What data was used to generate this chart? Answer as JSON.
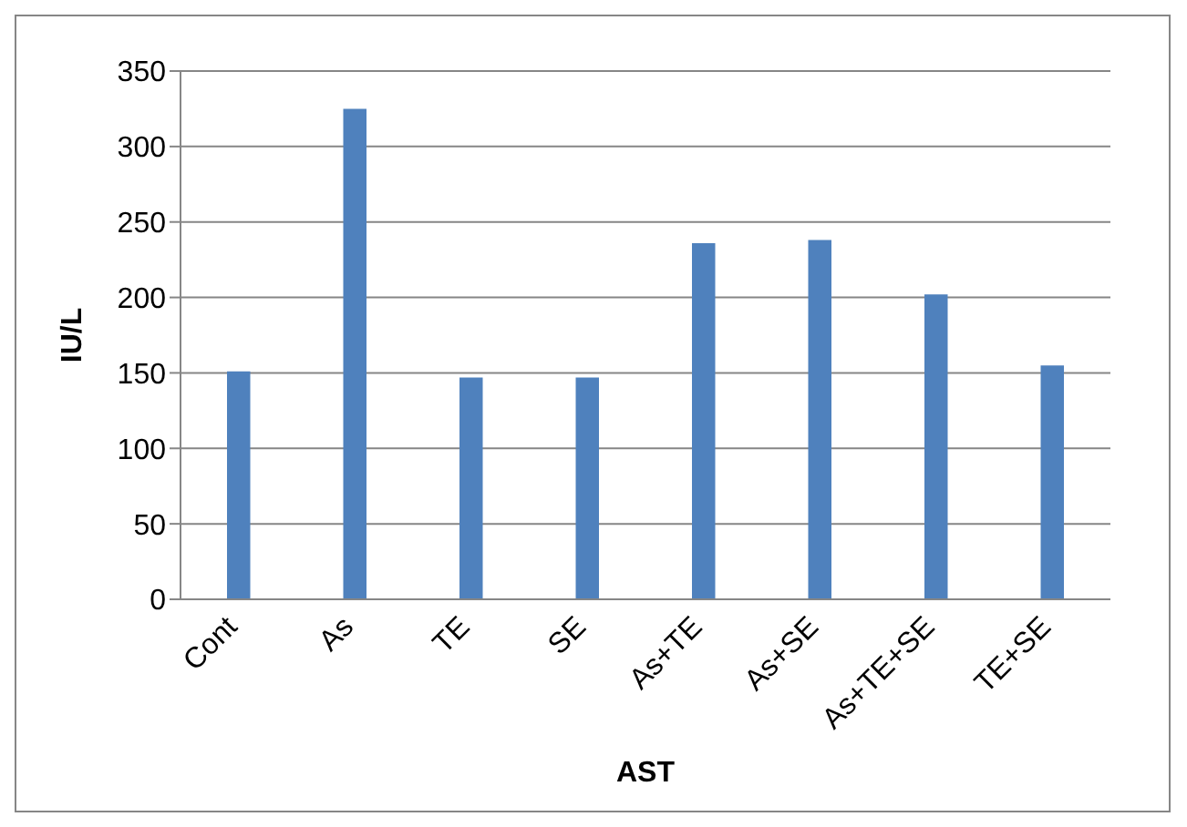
{
  "chart_data": {
    "type": "bar",
    "xlabel": "AST",
    "ylabel": "IU/L",
    "categories": [
      "Cont",
      "As",
      "TE",
      "SE",
      "As+TE",
      "As+SE",
      "As+TE+SE",
      "TE+SE"
    ],
    "values": [
      151,
      325,
      147,
      147,
      236,
      238,
      202,
      155
    ],
    "color": "#4f81bd",
    "ylim": [
      0,
      350
    ],
    "yticks": [
      0,
      50,
      100,
      150,
      200,
      250,
      300,
      350
    ],
    "grid": "y"
  }
}
